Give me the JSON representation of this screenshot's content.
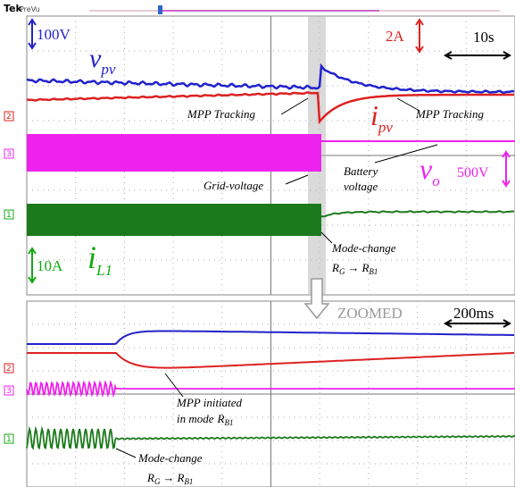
{
  "header": {
    "brand": "Tek",
    "mode": "PreVu"
  },
  "channels": [
    "2",
    "3",
    "1"
  ],
  "top": {
    "vpv_scale": "100V",
    "ipv_scale": "2A",
    "time_scale": "10s",
    "vo_scale": "500V",
    "il1_scale": "10A",
    "vpv_label": {
      "main": "v",
      "sub": "pv"
    },
    "ipv_label": {
      "main": "i",
      "sub": "pv"
    },
    "vo_label": {
      "main": "v",
      "sub": "o"
    },
    "il1_label": {
      "main": "i",
      "sub": "L1"
    },
    "mpp_left": "MPP Tracking",
    "mpp_right": "MPP Tracking",
    "grid_voltage": "Grid-voltage",
    "battery_voltage": [
      "Battery",
      "voltage"
    ],
    "mode_change": {
      "title": "Mode-change",
      "from": "R",
      "from_sub": "G",
      "arrow": "→",
      "to": "R",
      "to_sub": "B1"
    }
  },
  "zoom_label": "ZOOMED",
  "bottom": {
    "time_scale": "200ms",
    "mpp_initiated": {
      "line1": "MPP initiated",
      "line2": "in mode",
      "r": "R",
      "r_sub": "B1"
    },
    "mode_change": {
      "title": "Mode-change",
      "from": "R",
      "from_sub": "G",
      "arrow": "→",
      "to": "R",
      "to_sub": "B1"
    }
  }
}
